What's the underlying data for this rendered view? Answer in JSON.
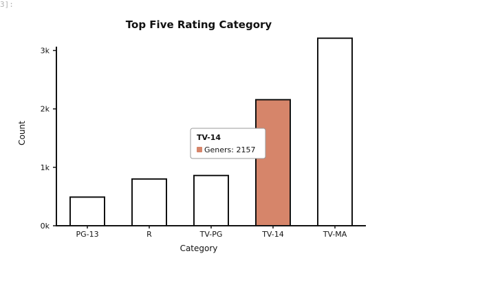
{
  "cell_label": "3]:",
  "chart_data": {
    "type": "bar",
    "title": "Top Five Rating Category",
    "xlabel": "Category",
    "ylabel": "Count",
    "categories": [
      "PG-13",
      "R",
      "TV-PG",
      "TV-14",
      "TV-MA"
    ],
    "series": [
      {
        "name": "Geners",
        "values": [
          490,
          800,
          860,
          2157,
          3210
        ]
      }
    ],
    "ylim": [
      0,
      3300
    ],
    "yticks": [
      0,
      1000,
      2000,
      3000
    ],
    "ytick_labels": [
      "0k",
      "1k",
      "2k",
      "3k"
    ],
    "grid": false,
    "highlight_index": 3,
    "colors": {
      "bar_fill": "#ffffff",
      "bar_stroke": "#111111",
      "highlight_fill": "#d6856a"
    },
    "tooltip": {
      "title": "TV-14",
      "label": "Geners: 2157"
    }
  }
}
